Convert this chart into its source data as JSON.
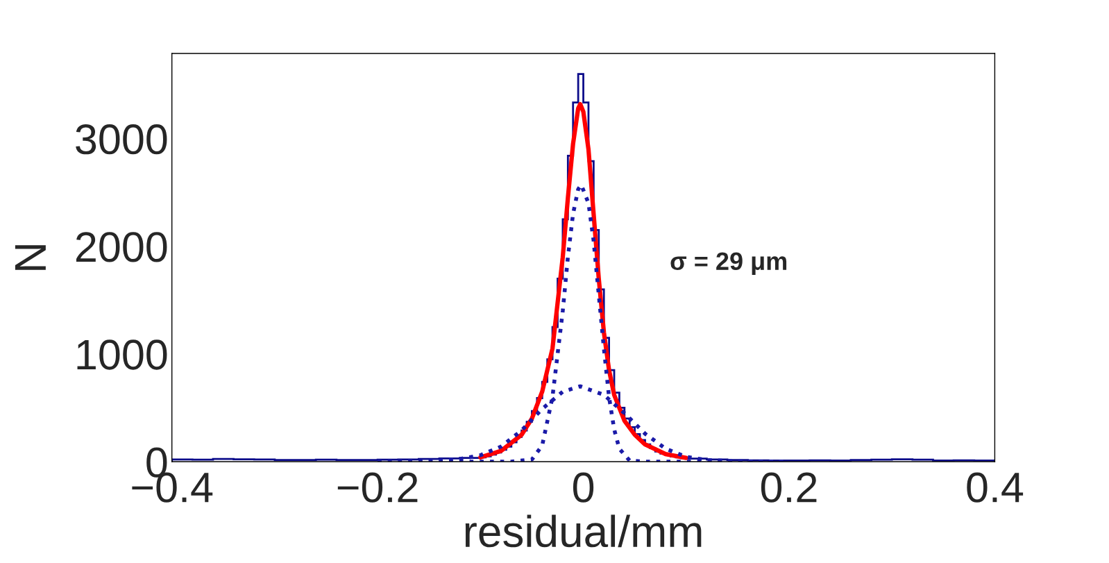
{
  "chart_data": {
    "type": "histogram",
    "xlabel": "residual/mm",
    "ylabel": "N",
    "annotations": [
      "σ = 29 μm"
    ],
    "bins": [
      -0.4,
      -0.38,
      -0.36,
      -0.34,
      -0.32,
      -0.3,
      -0.28,
      -0.26,
      -0.24,
      -0.22,
      -0.2,
      -0.18,
      -0.16,
      -0.14,
      -0.12,
      -0.1,
      -0.095,
      -0.09,
      -0.085,
      -0.08,
      -0.075,
      -0.07,
      -0.065,
      -0.06,
      -0.055,
      -0.05,
      -0.045,
      -0.04,
      -0.035,
      -0.03,
      -0.025,
      -0.02,
      -0.015,
      -0.01,
      -0.005,
      0,
      0.005,
      0.01,
      0.015,
      0.02,
      0.025,
      0.03,
      0.035,
      0.04,
      0.045,
      0.05,
      0.055,
      0.06,
      0.065,
      0.07,
      0.075,
      0.08,
      0.085,
      0.09,
      0.095,
      0.1,
      0.12,
      0.14,
      0.16,
      0.18,
      0.2,
      0.22,
      0.24,
      0.26,
      0.28,
      0.3,
      0.32,
      0.34,
      0.36,
      0.38,
      0.4
    ],
    "values": [
      20,
      18,
      25,
      22,
      20,
      15,
      15,
      18,
      15,
      15,
      18,
      20,
      25,
      30,
      35,
      40,
      50,
      65,
      85,
      110,
      140,
      180,
      230,
      290,
      370,
      470,
      590,
      740,
      950,
      1250,
      1700,
      2250,
      2840,
      3335,
      3600,
      3335,
      2790,
      2150,
      1600,
      1150,
      850,
      640,
      500,
      400,
      320,
      255,
      200,
      160,
      125,
      95,
      75,
      60,
      48,
      40,
      33,
      28,
      20,
      15,
      12,
      10,
      10,
      12,
      10,
      15,
      18,
      22,
      18,
      10,
      12,
      10
    ],
    "color": "#0b0b8a",
    "series": [
      {
        "type": "line",
        "color": "#ff0000",
        "line_style": "solid",
        "x": [
          -0.1,
          -0.08,
          -0.06,
          -0.05,
          -0.04,
          -0.03,
          -0.02,
          -0.015,
          -0.01,
          -0.005,
          -0.003,
          0,
          0.005,
          0.01,
          0.015,
          0.02,
          0.025,
          0.03,
          0.04,
          0.05,
          0.06,
          0.08,
          0.1
        ],
        "values": [
          40,
          100,
          250,
          400,
          650,
          1050,
          1900,
          2450,
          2950,
          3280,
          3320,
          3250,
          2900,
          2300,
          1700,
          1200,
          850,
          620,
          380,
          250,
          160,
          70,
          35
        ]
      },
      {
        "type": "line",
        "color": "#1a1aa8",
        "line_style": "dotted",
        "x": [
          -0.2,
          -0.07,
          -0.05,
          -0.04,
          -0.03,
          -0.02,
          -0.015,
          -0.01,
          -0.005,
          -0.002,
          0.005,
          0.01,
          0.015,
          0.02,
          0.025,
          0.03,
          0.035,
          0.045,
          0.06,
          0.2
        ],
        "values": [
          0,
          0,
          20,
          150,
          600,
          1400,
          1900,
          2300,
          2530,
          2570,
          2400,
          2050,
          1550,
          1050,
          600,
          300,
          120,
          10,
          0,
          0
        ]
      },
      {
        "type": "line",
        "color": "#1a1aa8",
        "line_style": "dotted",
        "x": [
          -0.2,
          -0.15,
          -0.12,
          -0.1,
          -0.08,
          -0.06,
          -0.04,
          -0.02,
          -0.003,
          0.02,
          0.04,
          0.06,
          0.08,
          0.1,
          0.12,
          0.15,
          0.2
        ],
        "values": [
          0,
          5,
          25,
          60,
          140,
          290,
          490,
          650,
          700,
          620,
          450,
          260,
          120,
          45,
          15,
          3,
          0
        ]
      }
    ],
    "xlim": [
      -0.4,
      0.4
    ],
    "ylim": [
      0,
      3790
    ],
    "xticks": [
      {
        "value": -0.4,
        "label": "−0.4"
      },
      {
        "value": -0.2,
        "label": "−0.2"
      },
      0,
      0.2,
      0.4
    ],
    "yticks": [
      0,
      1000,
      2000,
      3000
    ],
    "grid": false,
    "legend": false
  }
}
